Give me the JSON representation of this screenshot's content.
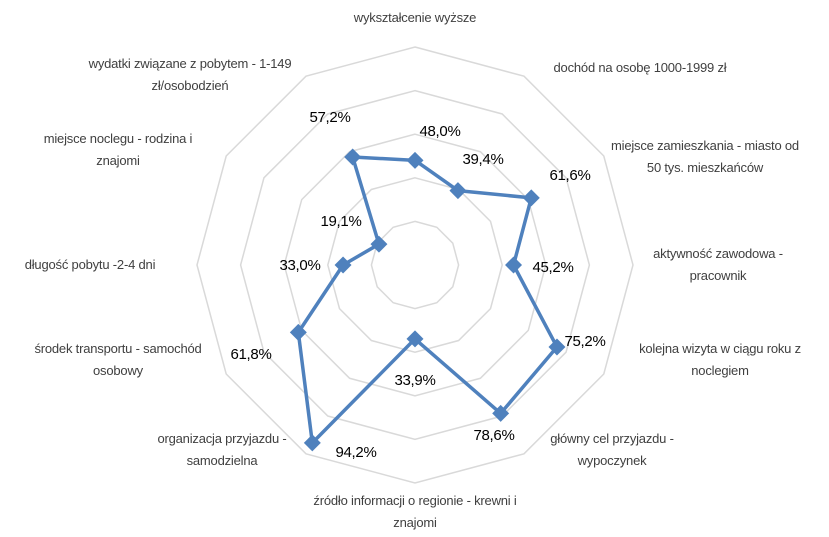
{
  "chart_data": {
    "type": "radar",
    "categories": [
      "wykształcenie wyższe",
      "dochód na osobę 1000-1999 zł",
      "miejsce zamieszkania - miasto od 50 tys. mieszkańców",
      "aktywność zawodowa - pracownik",
      "kolejna wizyta w ciągu roku z noclegiem",
      "główny cel przyjazdu - wypoczynek",
      "źródło informacji o regionie - krewni i znajomi",
      "organizacja przyjazdu - samodzielna",
      "środek transportu - samochód osobowy",
      "długość pobytu -2-4 dni",
      "miejsce noclegu - rodzina i znajomi",
      "wydatki związane z pobytem - 1-149 zł/osobodzień"
    ],
    "values": [
      48.0,
      39.4,
      61.6,
      45.2,
      75.2,
      78.6,
      33.9,
      94.2,
      61.8,
      33.0,
      19.1,
      57.2
    ],
    "value_labels": [
      "48,0%",
      "39,4%",
      "61,6%",
      "45,2%",
      "75,2%",
      "78,6%",
      "33,9%",
      "94,2%",
      "61,8%",
      "33,0%",
      "19,1%",
      "57,2%"
    ],
    "color": "#4f81bd",
    "ylim": [
      0,
      100
    ],
    "yticks": [
      0,
      20,
      40,
      60,
      80,
      100
    ],
    "grid": true
  }
}
